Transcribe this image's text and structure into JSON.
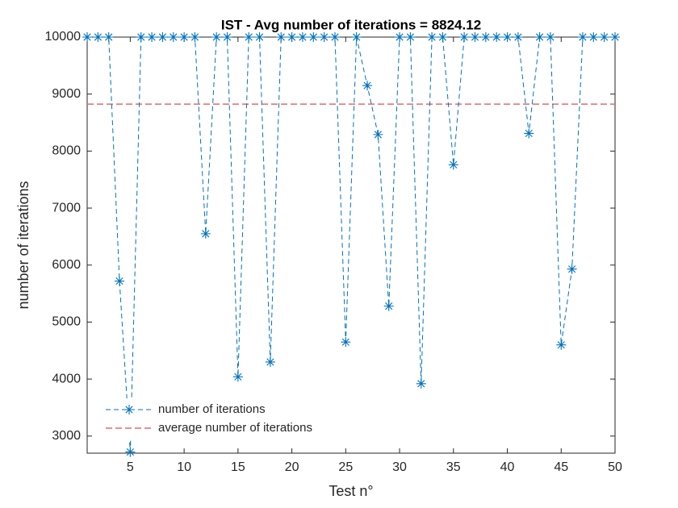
{
  "chart_data": {
    "type": "line",
    "title": "IST - Avg number of iterations = 8824.12",
    "x_label": "Test n°",
    "y_label": "number of iterations",
    "x": [
      1,
      2,
      3,
      4,
      5,
      6,
      7,
      8,
      9,
      10,
      11,
      12,
      13,
      14,
      15,
      16,
      17,
      18,
      19,
      20,
      21,
      22,
      23,
      24,
      25,
      26,
      27,
      28,
      29,
      30,
      31,
      32,
      33,
      34,
      35,
      36,
      37,
      38,
      39,
      40,
      41,
      42,
      43,
      44,
      45,
      46,
      47,
      48,
      49,
      50
    ],
    "series": [
      {
        "name": "number of iterations",
        "color": "#0072bd",
        "values": [
          10000,
          10000,
          10000,
          5720,
          2720,
          10000,
          10000,
          10000,
          10000,
          10000,
          10000,
          6550,
          10000,
          10000,
          4040,
          10000,
          10000,
          4300,
          10000,
          10000,
          10000,
          10000,
          10000,
          10000,
          4650,
          10000,
          9150,
          8290,
          5280,
          10000,
          10000,
          3920,
          10000,
          10000,
          7760,
          10000,
          10000,
          10000,
          10000,
          10000,
          10000,
          8310,
          10000,
          10000,
          4600,
          5930,
          10000,
          10000,
          10000,
          10000
        ]
      }
    ],
    "average": {
      "name": "average number of iterations",
      "color": "#e06b6b",
      "value": 8824.12
    },
    "xlim": [
      1,
      50
    ],
    "xticks": [
      5,
      10,
      15,
      20,
      25,
      30,
      35,
      40,
      45,
      50
    ],
    "ylim": [
      2700,
      10000
    ],
    "yticks": [
      3000,
      4000,
      5000,
      6000,
      7000,
      8000,
      9000,
      10000
    ],
    "legend": "lower left"
  }
}
